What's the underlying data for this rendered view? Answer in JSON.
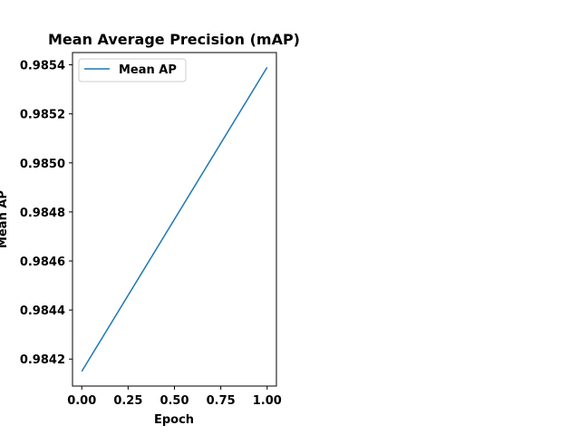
{
  "chart_data": {
    "type": "line",
    "title": "Mean Average Precision (mAP)",
    "xlabel": "Epoch",
    "ylabel": "Mean AP",
    "x": [
      0.0,
      1.0
    ],
    "series": [
      {
        "name": "Mean AP",
        "values": [
          0.98415,
          0.98539
        ],
        "color": "#1f77b4"
      }
    ],
    "xlim": [
      -0.05,
      1.05
    ],
    "ylim": [
      0.98409,
      0.98545
    ],
    "xticks": [
      0.0,
      0.25,
      0.5,
      0.75,
      1.0
    ],
    "xtick_labels": [
      "0.00",
      "0.25",
      "0.50",
      "0.75",
      "1.00"
    ],
    "yticks": [
      0.9842,
      0.9844,
      0.9846,
      0.9848,
      0.985,
      0.9852,
      0.9854
    ],
    "ytick_labels": [
      "0.9842",
      "0.9844",
      "0.9846",
      "0.9848",
      "0.9850",
      "0.9852",
      "0.9854"
    ],
    "grid": false,
    "legend_position": "top-left"
  }
}
